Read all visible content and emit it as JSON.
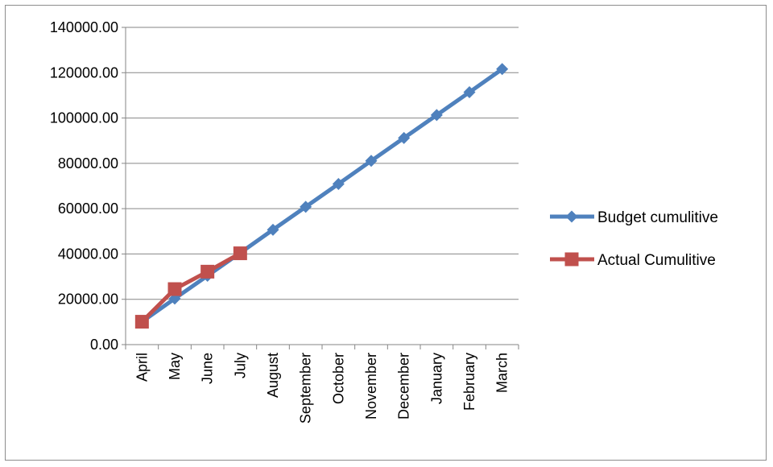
{
  "chart_data": {
    "type": "line",
    "title": "",
    "xlabel": "",
    "ylabel": "",
    "categories": [
      "April",
      "May",
      "June",
      "July",
      "August",
      "September",
      "October",
      "November",
      "December",
      "January",
      "February",
      "March"
    ],
    "ylim": [
      0,
      140000
    ],
    "y_ticks": [
      "0.00",
      "20000.00",
      "40000.00",
      "60000.00",
      "80000.00",
      "100000.00",
      "120000.00",
      "140000.00"
    ],
    "grid": "horizontal",
    "legend_position": "right",
    "series": [
      {
        "name": "Budget cumulitive",
        "color": "#4f81bd",
        "marker": "diamond",
        "values": [
          10100,
          20300,
          30400,
          40500,
          50700,
          60800,
          70900,
          81100,
          91200,
          101300,
          111400,
          121600
        ]
      },
      {
        "name": "Actual Cumulitive",
        "color": "#c0504d",
        "marker": "square",
        "values": [
          10100,
          24500,
          32200,
          40300,
          null,
          null,
          null,
          null,
          null,
          null,
          null,
          null
        ]
      }
    ]
  }
}
